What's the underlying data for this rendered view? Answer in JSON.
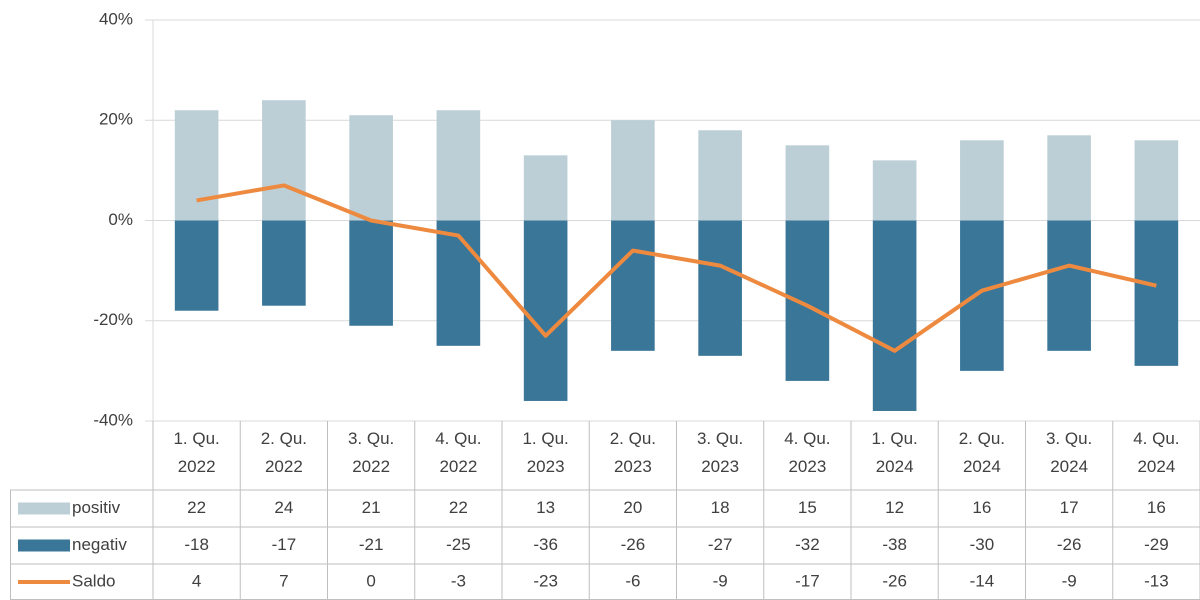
{
  "chart_data": {
    "type": "bar",
    "categories": [
      "1. Qu. 2022",
      "2. Qu. 2022",
      "3. Qu. 2022",
      "4. Qu. 2022",
      "1. Qu. 2023",
      "2. Qu. 2023",
      "3. Qu. 2023",
      "4. Qu. 2023",
      "1. Qu. 2024",
      "2. Qu. 2024",
      "3. Qu. 2024",
      "4. Qu. 2024"
    ],
    "series": [
      {
        "name": "positiv",
        "type": "bar",
        "color": "#bccfd6",
        "values": [
          22,
          24,
          21,
          22,
          13,
          20,
          18,
          15,
          12,
          16,
          17,
          16
        ]
      },
      {
        "name": "negativ",
        "type": "bar",
        "color": "#3a7698",
        "values": [
          -18,
          -17,
          -21,
          -25,
          -36,
          -26,
          -27,
          -32,
          -38,
          -30,
          -26,
          -29
        ]
      },
      {
        "name": "Saldo",
        "type": "line",
        "color": "#ed8a3f",
        "values": [
          4,
          7,
          0,
          -3,
          -23,
          -6,
          -9,
          -17,
          -26,
          -14,
          -9,
          -13
        ]
      }
    ],
    "ylim": [
      -40,
      40
    ],
    "yticks": [
      {
        "value": -40,
        "label": "-40%"
      },
      {
        "value": -20,
        "label": "-20%"
      },
      {
        "value": 0,
        "label": "0%"
      },
      {
        "value": 20,
        "label": "20%"
      },
      {
        "value": 40,
        "label": "40%"
      }
    ],
    "grid": true,
    "data_table": true
  }
}
